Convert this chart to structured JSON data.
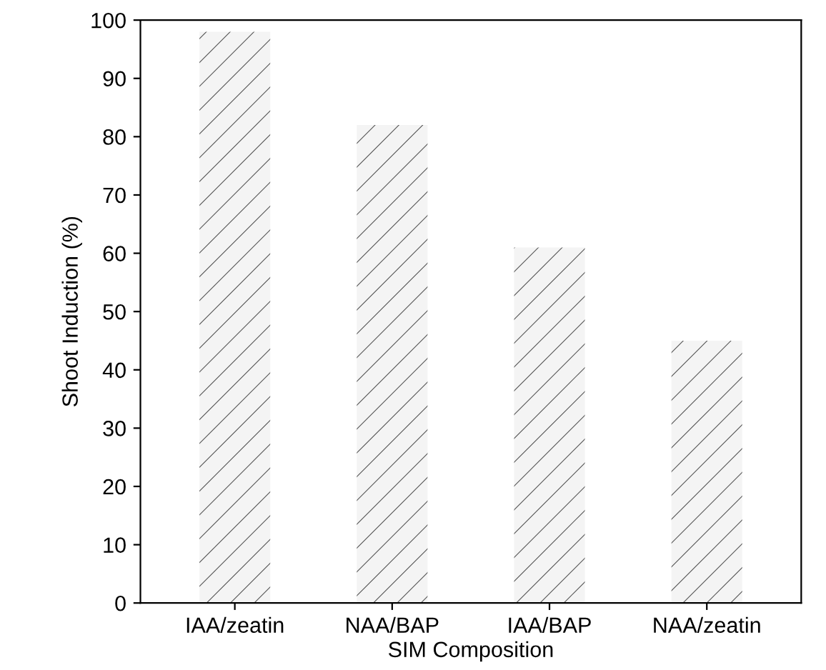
{
  "chart_data": {
    "type": "bar",
    "xlabel": "SIM Composition",
    "ylabel": "Shoot Induction (%)",
    "categories": [
      "IAA/zeatin",
      "NAA/BAP",
      "IAA/BAP",
      "NAA/zeatin"
    ],
    "values": [
      98,
      82,
      61,
      45
    ],
    "color": "#f4f4f4",
    "ylim": [
      0,
      100
    ],
    "yticks": [
      0,
      10,
      20,
      30,
      40,
      50,
      60,
      70,
      80,
      90,
      100
    ],
    "grid": false,
    "legend": false
  }
}
